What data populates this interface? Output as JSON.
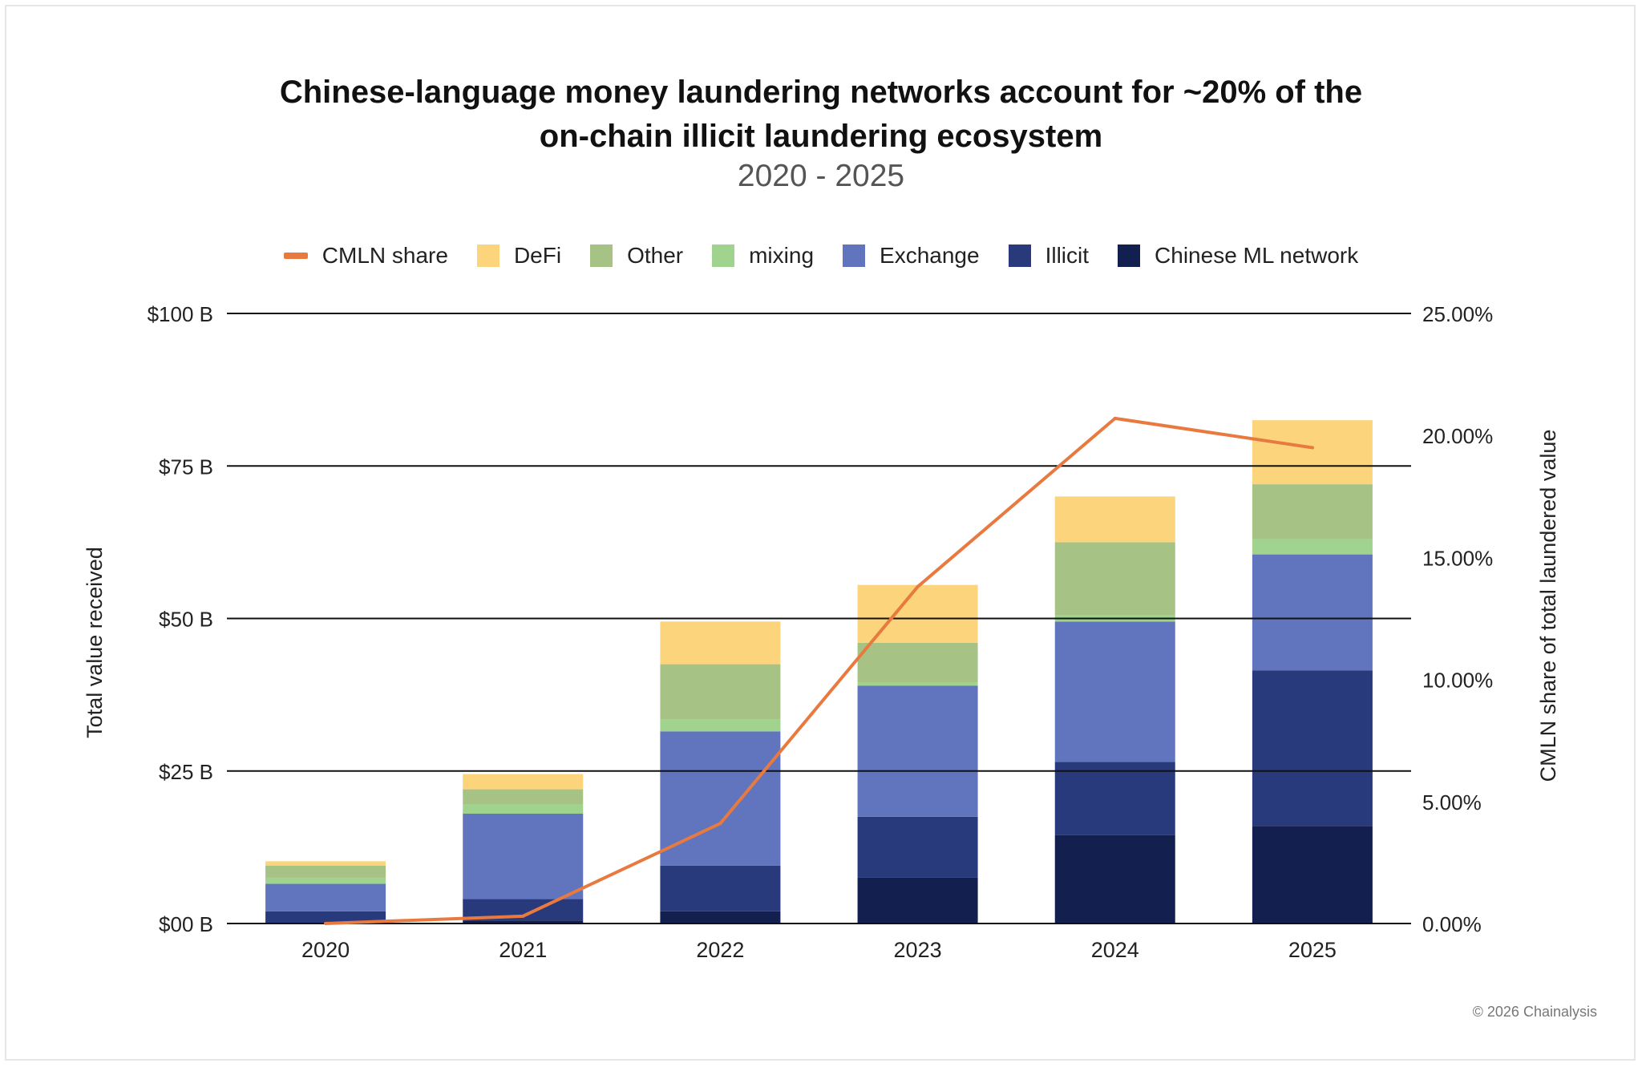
{
  "chart_data": {
    "type": "bar",
    "stacked": true,
    "title_line1": "Chinese-language money laundering networks account for ~20% of the",
    "title_line2": "on-chain illicit laundering ecosystem",
    "subtitle": "2020 - 2025",
    "ylabel": "Total value received",
    "y2label": "CMLN share of total laundered value",
    "ylim": [
      0,
      100
    ],
    "y2lim": [
      0,
      25
    ],
    "yticks": [
      {
        "value": 0,
        "label": "$00 B"
      },
      {
        "value": 25,
        "label": "$25 B"
      },
      {
        "value": 50,
        "label": "$50 B"
      },
      {
        "value": 75,
        "label": "$75 B"
      },
      {
        "value": 100,
        "label": "$100 B"
      }
    ],
    "y2ticks": [
      {
        "value": 0,
        "label": "0.00%"
      },
      {
        "value": 5,
        "label": "5.00%"
      },
      {
        "value": 10,
        "label": "10.00%"
      },
      {
        "value": 15,
        "label": "15.00%"
      },
      {
        "value": 20,
        "label": "20.00%"
      },
      {
        "value": 25,
        "label": "25.00%"
      }
    ],
    "grid": true,
    "legend_position": "top",
    "categories": [
      "2020",
      "2021",
      "2022",
      "2023",
      "2024",
      "2025"
    ],
    "series": [
      {
        "name": "Chinese ML network",
        "color": "#13204f",
        "values": [
          0.1,
          0.5,
          2.0,
          7.5,
          14.5,
          16.0
        ]
      },
      {
        "name": "Illicit",
        "color": "#293a7c",
        "values": [
          1.9,
          3.5,
          7.5,
          10.0,
          12.0,
          25.5
        ]
      },
      {
        "name": "Exchange",
        "color": "#6075bd",
        "values": [
          4.5,
          14.0,
          22.0,
          21.5,
          23.0,
          19.0
        ]
      },
      {
        "name": "mixing",
        "color": "#9fd38e",
        "values": [
          1.0,
          1.5,
          2.0,
          0.5,
          1.0,
          2.5
        ]
      },
      {
        "name": "Other",
        "color": "#a6c385",
        "values": [
          2.0,
          2.5,
          9.0,
          6.5,
          12.0,
          9.0
        ]
      },
      {
        "name": "DeFi",
        "color": "#fbd47c",
        "values": [
          0.7,
          2.5,
          7.0,
          9.5,
          7.5,
          10.5
        ]
      }
    ],
    "line_series": {
      "name": "CMLN share",
      "color": "#e87a3f",
      "axis": "right",
      "values": [
        0.0,
        0.3,
        4.1,
        13.8,
        20.7,
        19.5
      ]
    },
    "legend_order": [
      "CMLN share",
      "DeFi",
      "Other",
      "mixing",
      "Exchange",
      "Illicit",
      "Chinese ML network"
    ]
  },
  "footer": {
    "copyright": "© 2026 Chainalysis"
  }
}
